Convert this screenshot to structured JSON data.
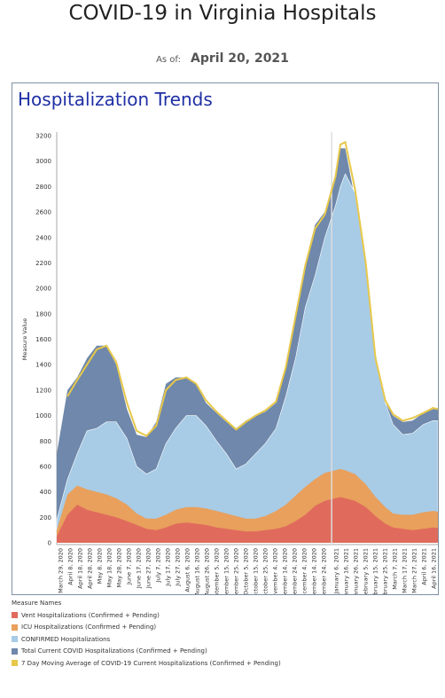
{
  "page": {
    "title": "COVID-19 in Virginia Hospitals",
    "as_of_label": "As of:",
    "as_of_date": "April 20, 2021"
  },
  "panel": {
    "title": "Hospitalization Trends"
  },
  "legend": {
    "title": "Measure Names",
    "items": [
      {
        "label": "Vent Hospitalizations (Confirmed + Pending)",
        "color": "#e06b5c"
      },
      {
        "label": "ICU Hospitalizations (Confirmed + Pending)",
        "color": "#e8a05c"
      },
      {
        "label": "CONFIRMED Hospitalizations",
        "color": "#a8cbe6"
      },
      {
        "label": "Total Current COVID Hospitalizations (Confirmed + Pending)",
        "color": "#6f88ab"
      },
      {
        "label": "7 Day Moving Average of COVID-19 Current Hospitalizations (Confirmed + Pending)",
        "color": "#e7c84b"
      }
    ]
  },
  "chart_data": {
    "type": "area",
    "ylabel": "Measure Value",
    "ylim": [
      0,
      3200
    ],
    "yticks": [
      0,
      200,
      400,
      600,
      800,
      1000,
      1200,
      1400,
      1600,
      1800,
      2000,
      2200,
      2400,
      2600,
      2800,
      3000,
      3200
    ],
    "grid": false,
    "legend_position": "bottom",
    "reference_line_date": "2021-01-01",
    "xrange": [
      "2020-03-25",
      "2021-04-20"
    ],
    "x_tick_labels": [
      {
        "date": "2020-03-29",
        "label": "March 29, 2020"
      },
      {
        "date": "2020-04-08",
        "label": "April 8, 2020"
      },
      {
        "date": "2020-04-18",
        "label": "April 18, 2020"
      },
      {
        "date": "2020-04-28",
        "label": "April 28, 2020"
      },
      {
        "date": "2020-05-08",
        "label": "May 8, 2020"
      },
      {
        "date": "2020-05-18",
        "label": "May 18, 2020"
      },
      {
        "date": "2020-05-28",
        "label": "May 28, 2020"
      },
      {
        "date": "2020-06-07",
        "label": "June 7, 2020"
      },
      {
        "date": "2020-06-17",
        "label": "June 17, 2020"
      },
      {
        "date": "2020-06-27",
        "label": "June 27, 2020"
      },
      {
        "date": "2020-07-07",
        "label": "July 7, 2020"
      },
      {
        "date": "2020-07-17",
        "label": "July 17, 2020"
      },
      {
        "date": "2020-07-27",
        "label": "July 27, 2020"
      },
      {
        "date": "2020-08-06",
        "label": "August 6, 2020"
      },
      {
        "date": "2020-08-16",
        "label": "August 16, 2020"
      },
      {
        "date": "2020-08-26",
        "label": "August 26, 2020"
      },
      {
        "date": "2020-09-05",
        "label": "September 5, 2020"
      },
      {
        "date": "2020-09-15",
        "label": "September 15, 2020"
      },
      {
        "date": "2020-09-25",
        "label": "September 25, 2020"
      },
      {
        "date": "2020-10-05",
        "label": "October 5, 2020"
      },
      {
        "date": "2020-10-15",
        "label": "October 15, 2020"
      },
      {
        "date": "2020-10-25",
        "label": "October 25, 2020"
      },
      {
        "date": "2020-11-04",
        "label": "November 4, 2020"
      },
      {
        "date": "2020-11-14",
        "label": "November 14, 2020"
      },
      {
        "date": "2020-11-24",
        "label": "November 24, 2020"
      },
      {
        "date": "2020-12-04",
        "label": "December 4, 2020"
      },
      {
        "date": "2020-12-14",
        "label": "December 14, 2020"
      },
      {
        "date": "2020-12-24",
        "label": "December 24, 2020"
      },
      {
        "date": "2021-01-06",
        "label": "January 6, 2021"
      },
      {
        "date": "2021-01-16",
        "label": "January 16, 2021"
      },
      {
        "date": "2021-01-26",
        "label": "January 26, 2021"
      },
      {
        "date": "2021-02-05",
        "label": "February 5, 2021"
      },
      {
        "date": "2021-02-15",
        "label": "February 15, 2021"
      },
      {
        "date": "2021-02-25",
        "label": "February 25, 2021"
      },
      {
        "date": "2021-03-07",
        "label": "March 7, 2021"
      },
      {
        "date": "2021-03-17",
        "label": "March 17, 2021"
      },
      {
        "date": "2021-03-27",
        "label": "March 27, 2021"
      },
      {
        "date": "2021-04-06",
        "label": "April 6, 2021"
      },
      {
        "date": "2021-04-16",
        "label": "April 16, 2021"
      }
    ],
    "x": [
      "2020-03-25",
      "2020-04-05",
      "2020-04-15",
      "2020-04-25",
      "2020-05-05",
      "2020-05-15",
      "2020-05-25",
      "2020-06-05",
      "2020-06-15",
      "2020-06-25",
      "2020-07-05",
      "2020-07-15",
      "2020-07-25",
      "2020-08-05",
      "2020-08-15",
      "2020-08-25",
      "2020-09-05",
      "2020-09-15",
      "2020-09-25",
      "2020-10-05",
      "2020-10-15",
      "2020-10-25",
      "2020-11-05",
      "2020-11-15",
      "2020-11-25",
      "2020-12-05",
      "2020-12-15",
      "2020-12-25",
      "2021-01-05",
      "2021-01-10",
      "2021-01-15",
      "2021-01-25",
      "2021-02-05",
      "2021-02-15",
      "2021-02-25",
      "2021-03-05",
      "2021-03-15",
      "2021-03-25",
      "2021-04-05",
      "2021-04-15",
      "2021-04-20"
    ],
    "series": [
      {
        "name": "Vent Hospitalizations (Confirmed + Pending)",
        "color": "#e06b5c",
        "values": [
          50,
          220,
          300,
          260,
          240,
          220,
          200,
          170,
          140,
          110,
          100,
          120,
          150,
          160,
          150,
          140,
          120,
          110,
          100,
          90,
          90,
          100,
          110,
          130,
          170,
          220,
          290,
          330,
          350,
          360,
          350,
          330,
          280,
          210,
          150,
          120,
          110,
          100,
          110,
          120,
          115
        ]
      },
      {
        "name": "ICU Hospitalizations (Confirmed + Pending)",
        "color": "#e8a05c",
        "values": [
          100,
          380,
          450,
          420,
          400,
          380,
          350,
          300,
          230,
          190,
          190,
          220,
          260,
          280,
          280,
          270,
          250,
          230,
          210,
          190,
          190,
          210,
          250,
          300,
          370,
          440,
          500,
          550,
          570,
          580,
          570,
          540,
          460,
          360,
          280,
          230,
          220,
          220,
          240,
          250,
          245
        ]
      },
      {
        "name": "CONFIRMED Hospitalizations",
        "color": "#a8cbe6",
        "values": [
          180,
          500,
          700,
          880,
          900,
          950,
          950,
          820,
          600,
          540,
          580,
          780,
          900,
          1000,
          1000,
          920,
          800,
          700,
          580,
          620,
          700,
          780,
          900,
          1150,
          1450,
          1850,
          2100,
          2400,
          2650,
          2800,
          2900,
          2750,
          2200,
          1500,
          1100,
          930,
          850,
          860,
          930,
          960,
          960
        ]
      },
      {
        "name": "Total Current COVID Hospitalizations (Confirmed + Pending)",
        "color": "#6f88ab",
        "values": [
          700,
          1200,
          1300,
          1450,
          1550,
          1550,
          1400,
          1050,
          850,
          830,
          950,
          1250,
          1300,
          1300,
          1250,
          1100,
          1020,
          950,
          900,
          960,
          1000,
          1030,
          1100,
          1400,
          1800,
          2200,
          2500,
          2600,
          2900,
          3100,
          3100,
          2700,
          2100,
          1400,
          1100,
          1000,
          950,
          960,
          1020,
          1050,
          1060
        ]
      },
      {
        "name": "7 Day Moving Average of COVID-19 Current Hospitalizations (Confirmed + Pending)",
        "color": "#e7c84b",
        "values": [
          null,
          1150,
          1280,
          1400,
          1520,
          1550,
          1420,
          1100,
          880,
          840,
          920,
          1200,
          1280,
          1300,
          1250,
          1120,
          1030,
          960,
          890,
          950,
          1000,
          1040,
          1110,
          1380,
          1780,
          2180,
          2470,
          2580,
          2880,
          3130,
          3150,
          2780,
          2200,
          1450,
          1120,
          1010,
          960,
          980,
          1020,
          1060,
          1050
        ]
      }
    ]
  }
}
